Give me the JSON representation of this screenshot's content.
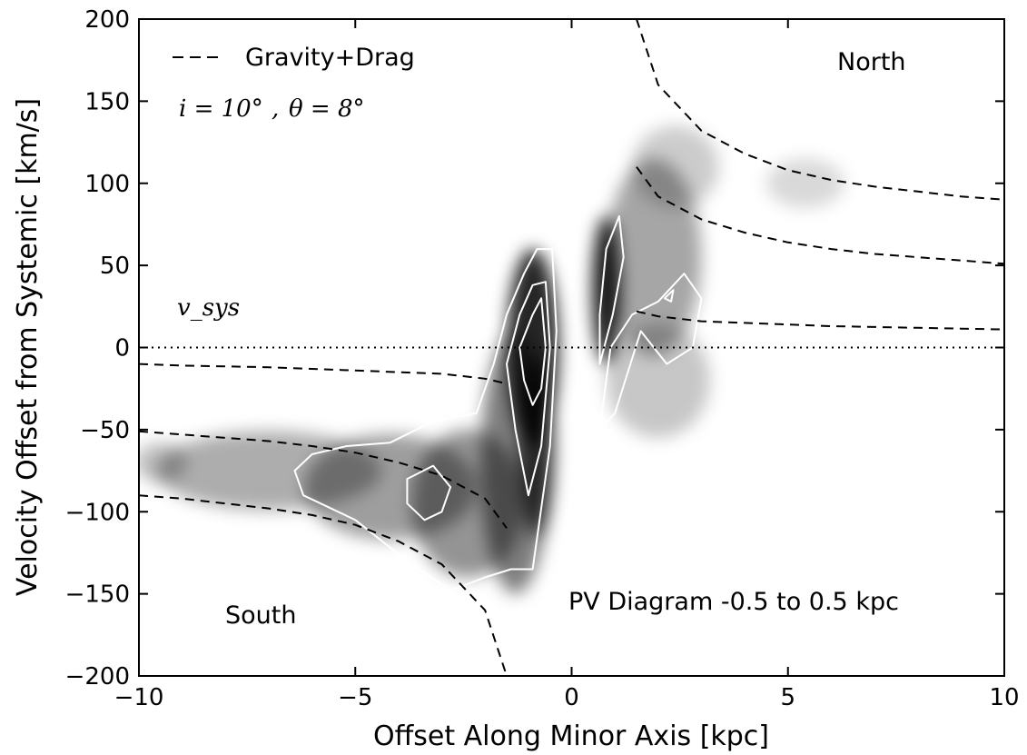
{
  "chart_data": {
    "type": "heatmap",
    "xlabel": "Offset Along Minor Axis [kpc]",
    "ylabel": "Velocity Offset from Systemic [km/s]",
    "xlim": [
      -10,
      10
    ],
    "ylim": [
      -200,
      200
    ],
    "xticks": [
      -10,
      -5,
      0,
      5,
      10
    ],
    "xtick_labels": [
      "−10",
      "−5",
      "0",
      "5",
      "10"
    ],
    "yticks": [
      200,
      150,
      100,
      50,
      0,
      -50,
      -100,
      -150,
      -200
    ],
    "ytick_labels": [
      "200",
      "150",
      "100",
      "50",
      "0",
      "−50",
      "−100",
      "−150",
      "−200"
    ],
    "grid": false,
    "colormap": "grayscale (white to black)",
    "contour_color": "#ffffff",
    "systemic_line": {
      "y": 0,
      "style": "dotted",
      "label": "v_sys"
    },
    "legend": {
      "placement": "top-left",
      "entries": [
        {
          "label": "Gravity+Drag",
          "style": "dashed"
        }
      ]
    },
    "parameter_label": {
      "i": "i = 10°",
      "theta": "θ = 8°",
      "sep": ","
    },
    "annotations": {
      "north": "North",
      "south": "South",
      "pv": "PV Diagram -0.5 to 0.5 kpc"
    },
    "model_curves": {
      "north": [
        {
          "x": [
            1.5,
            2,
            3,
            4,
            5,
            6,
            7,
            8,
            9,
            10
          ],
          "y": [
            200,
            160,
            132,
            118,
            108,
            102,
            98,
            95,
            92,
            90
          ]
        },
        {
          "x": [
            1.5,
            2,
            3,
            4,
            5,
            6,
            7,
            8,
            9,
            10
          ],
          "y": [
            110,
            92,
            78,
            70,
            64,
            60,
            57,
            55,
            53,
            51
          ]
        },
        {
          "x": [
            1.5,
            2,
            3,
            4,
            5,
            6,
            7,
            8,
            9,
            10
          ],
          "y": [
            22,
            19,
            16,
            15,
            14,
            13,
            12.5,
            12,
            11.5,
            11
          ]
        }
      ],
      "south": [
        {
          "x": [
            -10,
            -9,
            -8,
            -7,
            -6,
            -5,
            -4,
            -3,
            -2,
            -1.5
          ],
          "y": [
            -10,
            -11,
            -11.5,
            -12,
            -13,
            -14,
            -15,
            -16,
            -19,
            -22
          ]
        },
        {
          "x": [
            -10,
            -9,
            -8,
            -7,
            -6,
            -5,
            -4,
            -3,
            -2,
            -1.5
          ],
          "y": [
            -51,
            -53,
            -55,
            -57,
            -60,
            -64,
            -70,
            -78,
            -92,
            -110
          ]
        },
        {
          "x": [
            -10,
            -9,
            -8,
            -7,
            -6,
            -5,
            -4,
            -3,
            -2,
            -1.5
          ],
          "y": [
            -90,
            -92,
            -95,
            -98,
            -102,
            -108,
            -118,
            -132,
            -160,
            -200
          ]
        }
      ]
    },
    "emission_blobs": [
      {
        "x": -7.0,
        "y": -75,
        "rx": 2.6,
        "ry": 24,
        "opacity": 0.32
      },
      {
        "x": -4.2,
        "y": -85,
        "rx": 2.0,
        "ry": 32,
        "opacity": 0.38
      },
      {
        "x": -2.4,
        "y": -95,
        "rx": 1.3,
        "ry": 45,
        "opacity": 0.42
      },
      {
        "x": -1.3,
        "y": -70,
        "rx": 0.8,
        "ry": 80,
        "opacity": 0.5
      },
      {
        "x": -0.9,
        "y": 0,
        "rx": 0.6,
        "ry": 60,
        "opacity": 0.85
      },
      {
        "x": -0.8,
        "y": -60,
        "rx": 0.4,
        "ry": 55,
        "opacity": 0.7
      },
      {
        "x": -9.5,
        "y": -70,
        "rx": 0.6,
        "ry": 12,
        "opacity": 0.25
      },
      {
        "x": 0.8,
        "y": 35,
        "rx": 0.32,
        "ry": 45,
        "opacity": 0.9
      },
      {
        "x": 1.9,
        "y": 55,
        "rx": 1.1,
        "ry": 60,
        "opacity": 0.35
      },
      {
        "x": 2.4,
        "y": 110,
        "rx": 1.0,
        "ry": 25,
        "opacity": 0.2
      },
      {
        "x": 5.4,
        "y": 100,
        "rx": 0.9,
        "ry": 15,
        "opacity": 0.15
      },
      {
        "x": 2.0,
        "y": -20,
        "rx": 1.2,
        "ry": 35,
        "opacity": 0.22
      }
    ],
    "contours": [
      {
        "x": [
          -6.0,
          -5.2,
          -4.2,
          -3.2,
          -2.2,
          -1.8,
          -1.5,
          -1.1,
          -0.8,
          -0.45,
          -0.35,
          -0.5,
          -0.9,
          -1.4,
          -2.0,
          -2.8,
          -3.8,
          -5.0,
          -6.2,
          -6.4
        ],
        "y": [
          -65,
          -60,
          -58,
          -45,
          -40,
          -10,
          20,
          45,
          60,
          60,
          10,
          -60,
          -135,
          -135,
          -140,
          -148,
          -130,
          -105,
          -90,
          -75
        ]
      },
      {
        "x": [
          -1.5,
          -1.2,
          -0.9,
          -0.6,
          -0.5,
          -0.7,
          -1.0,
          -1.3
        ],
        "y": [
          -10,
          20,
          38,
          40,
          0,
          -60,
          -90,
          -50
        ]
      },
      {
        "x": [
          -1.2,
          -0.9,
          -0.7,
          -0.6,
          -0.7,
          -0.9,
          -1.1
        ],
        "y": [
          0,
          20,
          30,
          0,
          -25,
          -35,
          -20
        ]
      },
      {
        "x": [
          -3.8,
          -3.2,
          -2.8,
          -3.0,
          -3.4,
          -3.8
        ],
        "y": [
          -80,
          -72,
          -85,
          -100,
          -105,
          -95
        ]
      },
      {
        "x": [
          0.65,
          0.9,
          1.4,
          2.0,
          2.6,
          3.0,
          2.8,
          2.2,
          1.6,
          1.0,
          0.65
        ],
        "y": [
          -50,
          0,
          20,
          28,
          45,
          30,
          0,
          -10,
          10,
          -40,
          -50
        ]
      },
      {
        "x": [
          0.65,
          0.95,
          1.2,
          1.1,
          0.8,
          0.65
        ],
        "y": [
          -10,
          20,
          55,
          80,
          60,
          20
        ]
      },
      {
        "x": [
          2.15,
          2.35,
          2.3,
          2.15
        ],
        "y": [
          30,
          35,
          28,
          30
        ]
      }
    ]
  }
}
